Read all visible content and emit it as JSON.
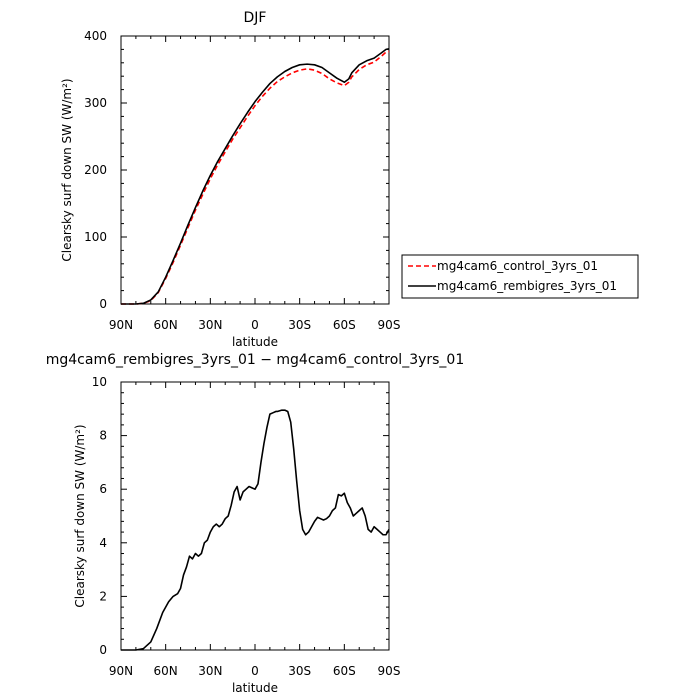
{
  "chart_data": [
    {
      "type": "line",
      "title": "DJF",
      "xlabel": "latitude",
      "ylabel": "Clearsky surf down SW (W/m²)",
      "xlim": [
        -90,
        90
      ],
      "ylim": [
        0,
        400
      ],
      "xticks": [
        -90,
        -60,
        -30,
        0,
        30,
        60,
        90
      ],
      "xtick_labels": [
        "90N",
        "60N",
        "30N",
        "0",
        "30S",
        "60S",
        "90S"
      ],
      "yticks": [
        0,
        100,
        200,
        300,
        400
      ],
      "ytick_labels": [
        "0",
        "100",
        "200",
        "300",
        "400"
      ],
      "grid": false,
      "legend_position": "right",
      "series": [
        {
          "name": "mg4cam6_control_3yrs_01",
          "color": "#ff0000",
          "dash": "dashed",
          "x": [
            -90,
            -80,
            -75,
            -70,
            -65,
            -60,
            -55,
            -50,
            -45,
            -40,
            -35,
            -30,
            -25,
            -20,
            -15,
            -10,
            -5,
            0,
            5,
            10,
            15,
            20,
            25,
            30,
            35,
            40,
            45,
            50,
            55,
            60,
            63,
            65,
            70,
            75,
            80,
            85,
            88,
            90
          ],
          "y": [
            0,
            0,
            1,
            5,
            17,
            38,
            62,
            88,
            114,
            140,
            164,
            187,
            208,
            227,
            246,
            263,
            280,
            296,
            310,
            322,
            332,
            339,
            345,
            349,
            351,
            349,
            344,
            336,
            330,
            326,
            331,
            339,
            350,
            357,
            361,
            370,
            376,
            377
          ]
        },
        {
          "name": "mg4cam6_rembigres_3yrs_01",
          "color": "#000000",
          "dash": "solid",
          "x": [
            -90,
            -80,
            -75,
            -70,
            -65,
            -60,
            -55,
            -50,
            -45,
            -40,
            -35,
            -30,
            -25,
            -20,
            -15,
            -10,
            -5,
            0,
            5,
            10,
            15,
            20,
            25,
            30,
            35,
            40,
            45,
            50,
            55,
            60,
            63,
            65,
            70,
            75,
            80,
            85,
            88,
            90
          ],
          "y": [
            0,
            0,
            1,
            6,
            18,
            40,
            65,
            91,
            118,
            144,
            169,
            192,
            213,
            232,
            251,
            269,
            286,
            302,
            316,
            329,
            339,
            347,
            353,
            357,
            358,
            357,
            353,
            345,
            337,
            331,
            336,
            345,
            357,
            363,
            367,
            375,
            380,
            381
          ]
        }
      ]
    },
    {
      "type": "line",
      "title": "mg4cam6_rembigres_3yrs_01 − mg4cam6_control_3yrs_01",
      "xlabel": "latitude",
      "ylabel": "Clearsky surf down SW (W/m²)",
      "xlim": [
        -90,
        90
      ],
      "ylim": [
        0,
        10
      ],
      "xticks": [
        -90,
        -60,
        -30,
        0,
        30,
        60,
        90
      ],
      "xtick_labels": [
        "90N",
        "60N",
        "30N",
        "0",
        "30S",
        "60S",
        "90S"
      ],
      "yticks": [
        0,
        2,
        4,
        6,
        8,
        10
      ],
      "ytick_labels": [
        "0",
        "2",
        "4",
        "6",
        "8",
        "10"
      ],
      "grid": false,
      "series": [
        {
          "color": "#000000",
          "dash": "solid",
          "x": [
            -90,
            -80,
            -75,
            -70,
            -66,
            -62,
            -58,
            -55,
            -52,
            -50,
            -48,
            -46,
            -44,
            -42,
            -40,
            -38,
            -36,
            -34,
            -32,
            -30,
            -28,
            -26,
            -24,
            -22,
            -20,
            -18,
            -16,
            -14,
            -12,
            -10,
            -8,
            -6,
            -4,
            -2,
            0,
            2,
            4,
            6,
            8,
            10,
            12,
            14,
            15,
            18,
            20,
            22,
            24,
            26,
            28,
            30,
            32,
            34,
            36,
            38,
            40,
            42,
            44,
            46,
            48,
            50,
            52,
            54,
            56,
            58,
            60,
            62,
            64,
            66,
            68,
            70,
            72,
            74,
            76,
            78,
            80,
            82,
            84,
            86,
            88,
            90
          ],
          "y": [
            0,
            0,
            0.05,
            0.3,
            0.8,
            1.4,
            1.8,
            2.0,
            2.1,
            2.3,
            2.8,
            3.1,
            3.5,
            3.4,
            3.6,
            3.5,
            3.6,
            4.0,
            4.1,
            4.4,
            4.6,
            4.7,
            4.6,
            4.7,
            4.9,
            5.0,
            5.4,
            5.9,
            6.1,
            5.6,
            5.9,
            6.0,
            6.1,
            6.05,
            6.0,
            6.2,
            7.0,
            7.7,
            8.3,
            8.8,
            8.85,
            8.9,
            8.9,
            8.95,
            8.95,
            8.9,
            8.5,
            7.5,
            6.3,
            5.2,
            4.5,
            4.3,
            4.4,
            4.6,
            4.8,
            4.95,
            4.9,
            4.85,
            4.9,
            5.0,
            5.2,
            5.3,
            5.8,
            5.75,
            5.85,
            5.5,
            5.3,
            5.0,
            5.1,
            5.2,
            5.3,
            5.0,
            4.5,
            4.4,
            4.6,
            4.5,
            4.4,
            4.3,
            4.3,
            4.5
          ]
        }
      ]
    }
  ]
}
